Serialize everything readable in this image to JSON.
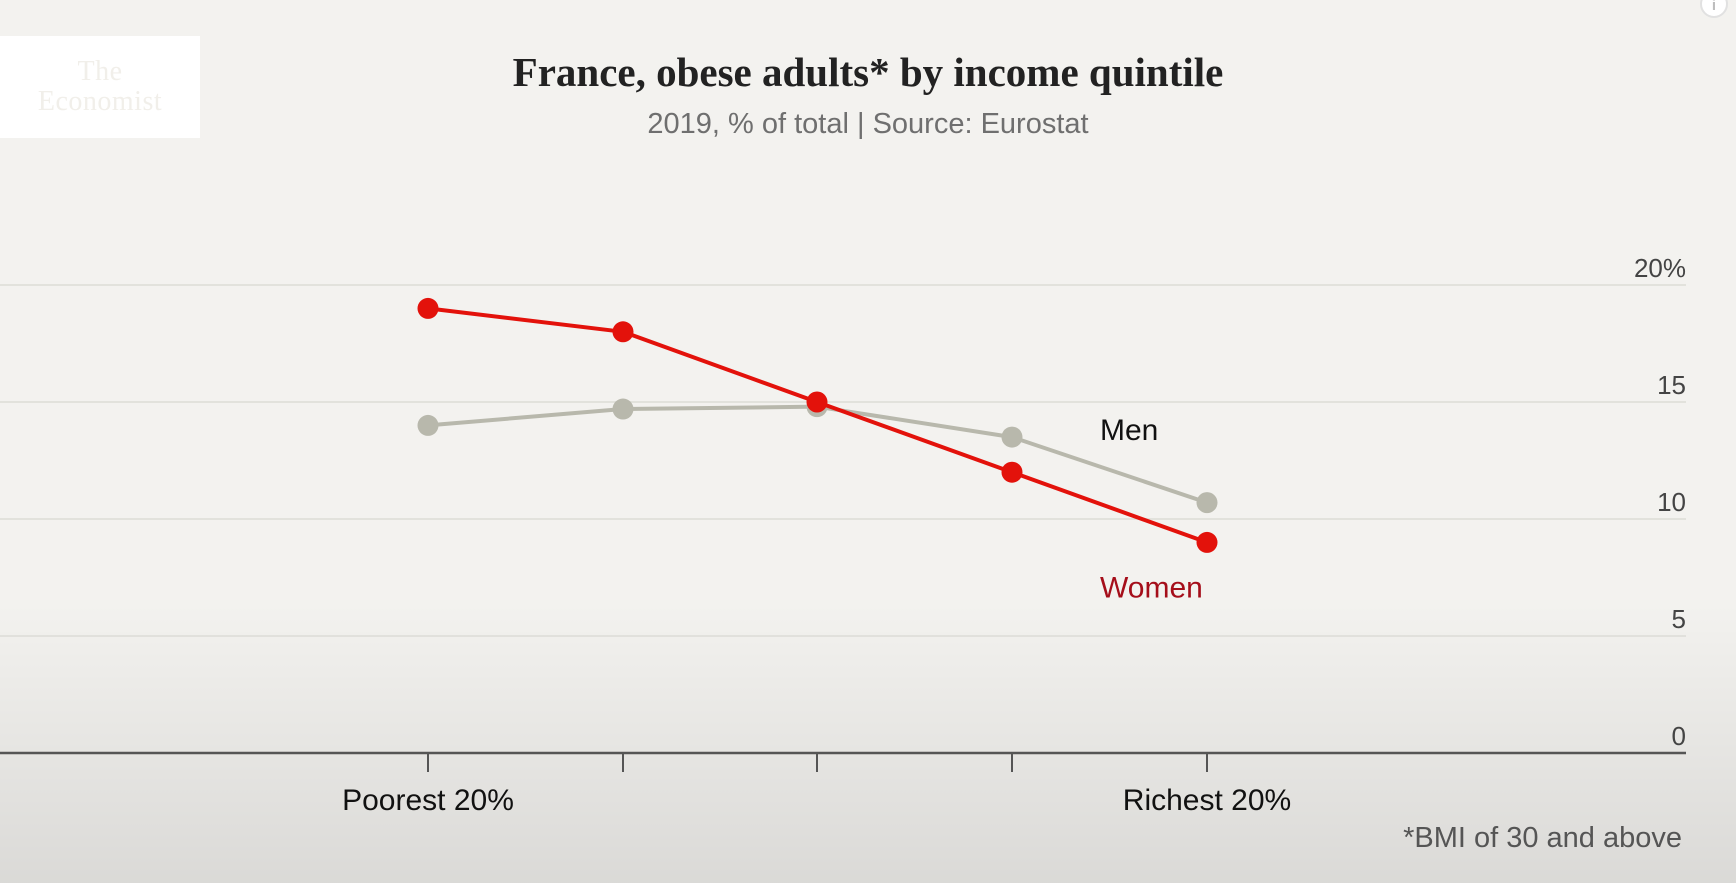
{
  "logo": {
    "line1": "The",
    "line2": "Economist"
  },
  "info_icon": {
    "glyph": "i"
  },
  "chart_data": {
    "type": "line",
    "title": "France, obese adults* by income quintile",
    "subtitle": "2019, % of total | Source: Eurostat",
    "categories": [
      "Poorest 20%",
      "",
      "",
      "",
      "Richest 20%"
    ],
    "series": [
      {
        "name": "Men",
        "values": [
          14.0,
          14.7,
          14.8,
          13.5,
          10.7
        ],
        "color": "#b8b8ac"
      },
      {
        "name": "Women",
        "values": [
          19.0,
          18.0,
          15.0,
          12.0,
          9.0
        ],
        "color": "#e3120b",
        "label_color": "#a50e1a"
      }
    ],
    "ylim": [
      0,
      20
    ],
    "yticks": [
      {
        "value": 20,
        "label": "20%"
      },
      {
        "value": 15,
        "label": "15"
      },
      {
        "value": 10,
        "label": "10"
      },
      {
        "value": 5,
        "label": "5"
      },
      {
        "value": 0,
        "label": "0"
      }
    ],
    "xlabel": "",
    "ylabel": "",
    "grid": true,
    "footnote": "*BMI of 30 and above"
  }
}
